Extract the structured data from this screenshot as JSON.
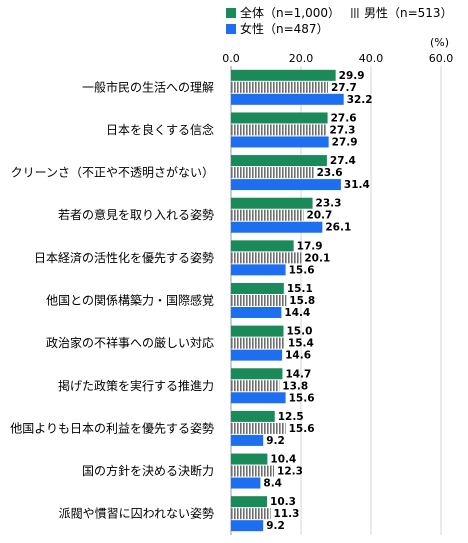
{
  "chart_data": {
    "type": "bar",
    "orientation": "horizontal",
    "unit": "(%)",
    "xlim": [
      0,
      60
    ],
    "ticks": [
      "0.0",
      "20.0",
      "40.0",
      "60.0"
    ],
    "grid": true,
    "legend_position": "top-right",
    "categories": [
      "一般市民の生活への理解",
      "日本を良くする信念",
      "クリーンさ（不正や不透明さがない）",
      "若者の意見を取り入れる姿勢",
      "日本経済の活性化を優先する姿勢",
      "他国との関係構築力・国際感覚",
      "政治家の不祥事への厳しい対応",
      "掲げた政策を実行する推進力",
      "他国よりも日本の利益を優先する姿勢",
      "国の方針を決める決断力",
      "派閥や慣習に囚われない姿勢"
    ],
    "series": [
      {
        "name": "全体（n=1,000）",
        "color": "#1a8a5a",
        "pattern": "solid",
        "values": [
          29.9,
          27.6,
          27.4,
          23.3,
          17.9,
          15.1,
          15.0,
          14.7,
          12.5,
          10.4,
          10.3
        ]
      },
      {
        "name": "男性（n=513）",
        "color": "#808080",
        "pattern": "vertical-stripes",
        "values": [
          27.7,
          27.3,
          23.6,
          20.7,
          20.1,
          15.8,
          15.4,
          13.8,
          15.6,
          12.3,
          11.3
        ]
      },
      {
        "name": "女性（n=487）",
        "color": "#1e6ef0",
        "pattern": "solid",
        "values": [
          32.2,
          27.9,
          31.4,
          26.1,
          15.6,
          14.4,
          14.6,
          15.6,
          9.2,
          8.4,
          9.2
        ]
      }
    ]
  }
}
